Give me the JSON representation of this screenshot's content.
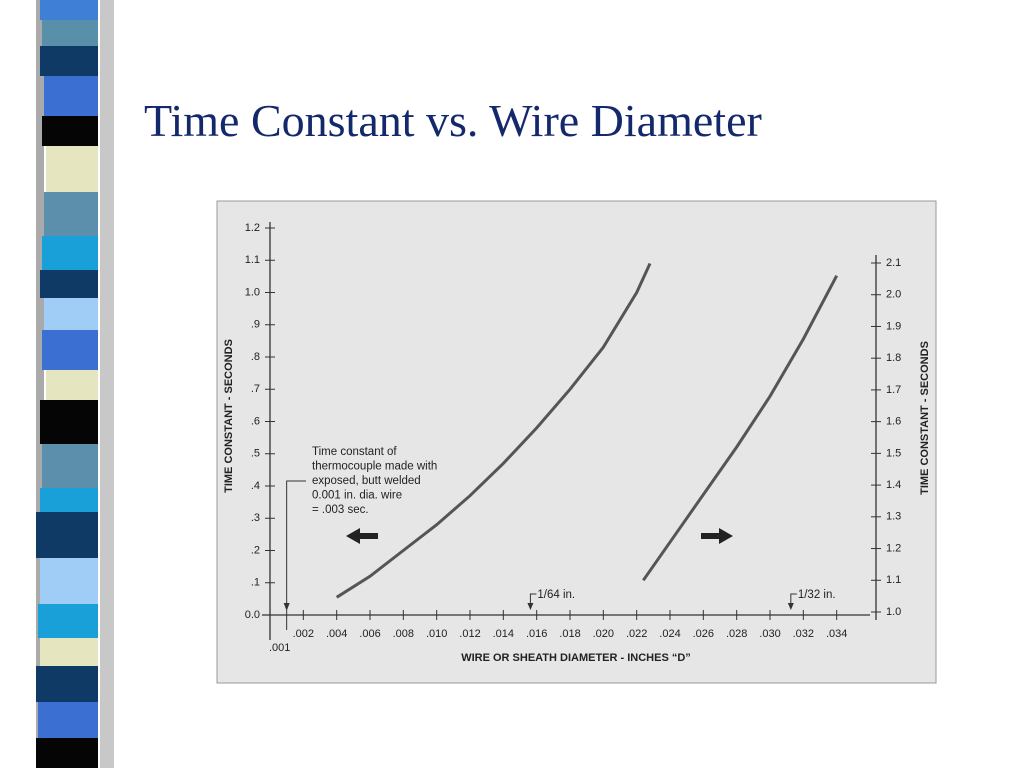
{
  "title": "Time Constant vs. Wire Diameter",
  "chart_data": {
    "type": "line",
    "ylabel": "TIME CONSTANT - SECONDS",
    "y2label": "TIME CONSTANT - SECONDS",
    "xlabel": "WIRE OR SHEATH DIAMETER - INCHES “D”",
    "xlim": [
      0,
      0.036
    ],
    "ylim": [
      0,
      1.2
    ],
    "y2lim": [
      1.0,
      2.1
    ],
    "xticks": [
      {
        "value": 0.001,
        "label": ".001"
      },
      {
        "value": 0.002,
        "label": ".002"
      },
      {
        "value": 0.004,
        "label": ".004"
      },
      {
        "value": 0.006,
        "label": ".006"
      },
      {
        "value": 0.008,
        "label": ".008"
      },
      {
        "value": 0.01,
        "label": ".010"
      },
      {
        "value": 0.012,
        "label": ".012"
      },
      {
        "value": 0.014,
        "label": ".014"
      },
      {
        "value": 0.016,
        "label": ".016"
      },
      {
        "value": 0.018,
        "label": ".018"
      },
      {
        "value": 0.02,
        "label": ".020"
      },
      {
        "value": 0.022,
        "label": ".022"
      },
      {
        "value": 0.024,
        "label": ".024"
      },
      {
        "value": 0.026,
        "label": ".026"
      },
      {
        "value": 0.028,
        "label": ".028"
      },
      {
        "value": 0.03,
        "label": ".030"
      },
      {
        "value": 0.032,
        "label": ".032"
      },
      {
        "value": 0.034,
        "label": ".034"
      }
    ],
    "yticks": [
      {
        "value": 0,
        "label": "0.0"
      },
      {
        "value": 0.1,
        "label": ".1"
      },
      {
        "value": 0.2,
        "label": ".2"
      },
      {
        "value": 0.3,
        "label": ".3"
      },
      {
        "value": 0.4,
        "label": ".4"
      },
      {
        "value": 0.5,
        "label": ".5"
      },
      {
        "value": 0.6,
        "label": ".6"
      },
      {
        "value": 0.7,
        "label": ".7"
      },
      {
        "value": 0.8,
        "label": ".8"
      },
      {
        "value": 0.9,
        "label": ".9"
      },
      {
        "value": 1.0,
        "label": "1.0"
      },
      1.1,
      1.2
    ],
    "y2ticks": [
      {
        "value": 1.0,
        "label": "1.0"
      },
      1.1,
      1.2,
      1.3,
      1.4,
      1.5,
      1.6,
      1.7,
      1.8,
      1.9,
      {
        "value": 2.0,
        "label": "2.0"
      },
      2.1
    ],
    "series": [
      {
        "color": "#555555",
        "x": [
          0.004,
          0.006,
          0.008,
          0.01,
          0.012,
          0.014,
          0.016,
          0.018,
          0.02,
          0.022,
          0.0228
        ],
        "values": [
          0.055,
          0.12,
          0.2,
          0.28,
          0.37,
          0.47,
          0.58,
          0.7,
          0.83,
          1.0,
          1.09
        ]
      },
      {
        "color": "#555555",
        "axis": "y2",
        "x": [
          0.0224,
          0.024,
          0.026,
          0.028,
          0.03,
          0.032,
          0.034
        ],
        "values": [
          1.1,
          1.22,
          1.37,
          1.52,
          1.68,
          1.86,
          2.06
        ]
      }
    ],
    "annotations": [
      {
        "text": [
          "Time constant of",
          "thermocouple made with",
          "exposed, butt welded",
          "0.001 in. dia. wire",
          "= .003 sec."
        ],
        "x": 0.001
      },
      {
        "text": "1/64 in.",
        "x": 0.015625
      },
      {
        "text": "1/32 in.",
        "x": 0.03125
      }
    ]
  }
}
